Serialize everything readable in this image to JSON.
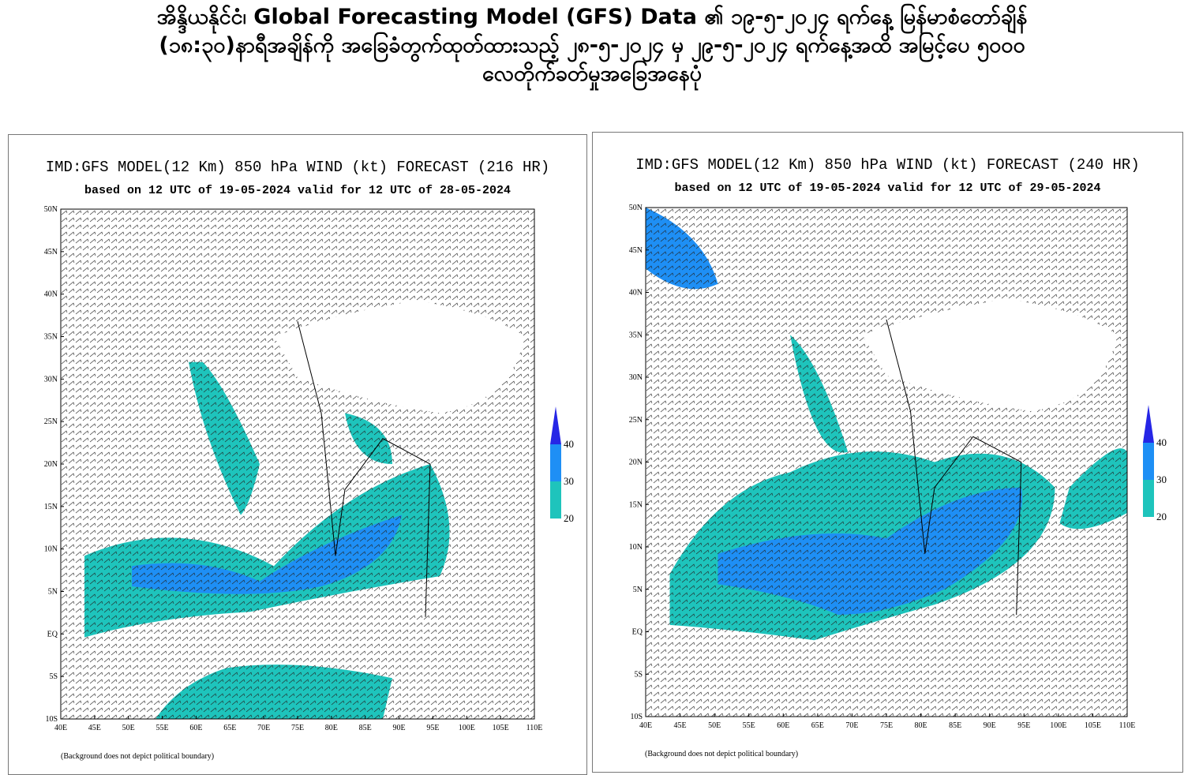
{
  "title_lines": [
    "အိန္ဒိယနိုင်ငံ၊ Global Forecasting Model (GFS) Data ၏ ၁၉-၅-၂၀၂၄ ရက်နေ့ မြန်မာစံတော်ချိန်",
    "(၁၈:၃၀)နာရီအချိန်ကို အခြေခံတွက်ထုတ်ထားသည့် ၂၈-၅-၂၀၂၄ မှ ၂၉-၅-၂၀၂၄ ရက်နေ့အထိ အမြင့်ပေ ၅၀၀၀",
    "လေတိုက်ခတ်မှုအခြေအနေပုံ"
  ],
  "panels": [
    {
      "title": "IMD:GFS MODEL(12 Km) 850 hPa WIND (kt) FORECAST (216 HR)",
      "subtitle": "based on 12 UTC of 19-05-2024 valid for 12 UTC of 28-05-2024",
      "note": "(Background does not depict political boundary)"
    },
    {
      "title": "IMD:GFS MODEL(12 Km) 850 hPa WIND (kt) FORECAST (240 HR)",
      "subtitle": "based on 12 UTC of 19-05-2024 valid for 12 UTC of 29-05-2024",
      "note": "(Background does not depict political boundary)"
    }
  ],
  "lat_labels": [
    "50N",
    "45N",
    "40N",
    "35N",
    "30N",
    "25N",
    "20N",
    "15N",
    "10N",
    "5N",
    "EQ",
    "5S",
    "10S"
  ],
  "lon_labels": [
    "40E",
    "45E",
    "50E",
    "55E",
    "60E",
    "65E",
    "70E",
    "75E",
    "80E",
    "85E",
    "90E",
    "95E",
    "100E",
    "105E",
    "110E"
  ],
  "legend": {
    "labels": [
      "40",
      "30",
      "20"
    ],
    "colors": {
      "low": "#1ec4bc",
      "mid": "#1e8ff5",
      "high": "#2626e6"
    }
  }
}
